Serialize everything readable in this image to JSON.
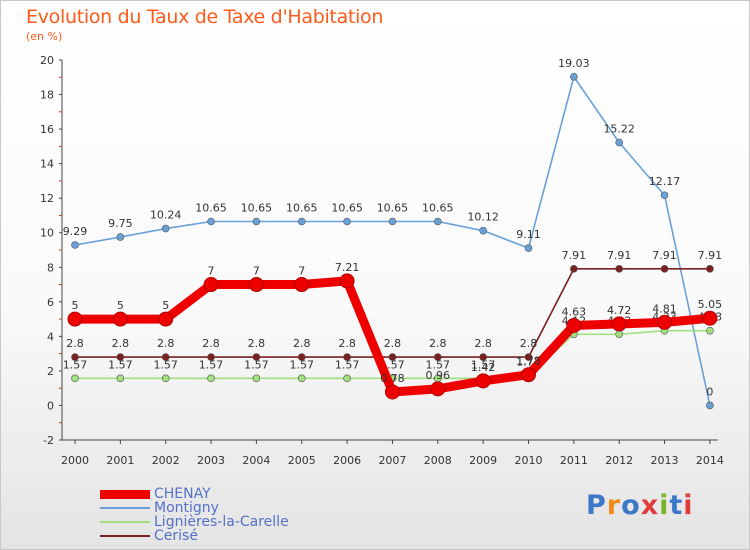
{
  "title": "Evolution du Taux de Taxe d'Habitation",
  "unit": "(en %)",
  "logo": {
    "text": "Proxiti",
    "colors": [
      "#3c78c8",
      "#f08c1e",
      "#3c78c8",
      "#e03c3c",
      "#7cb428",
      "#3c78c8",
      "#e03c3c"
    ]
  },
  "chart_data": {
    "type": "line",
    "x": [
      "2000",
      "2001",
      "2002",
      "2003",
      "2004",
      "2005",
      "2006",
      "2007",
      "2008",
      "2009",
      "2010",
      "2011",
      "2012",
      "2013",
      "2014"
    ],
    "ylim": [
      -2,
      20
    ],
    "yticks": [
      "-2",
      "0",
      "2",
      "4",
      "6",
      "8",
      "10",
      "12",
      "14",
      "16",
      "18",
      "20"
    ],
    "grid": false,
    "legend_position": "bottom-left",
    "series": [
      {
        "name": "Montigny",
        "color": "#6aa0d8",
        "values": [
          9.29,
          9.75,
          10.24,
          10.65,
          10.65,
          10.65,
          10.65,
          10.65,
          10.65,
          10.12,
          9.11,
          19.03,
          15.22,
          12.17,
          0
        ],
        "labels": [
          "9.29",
          "9.75",
          "10.24",
          "10.65",
          "10.65",
          "10.65",
          "10.65",
          "10.65",
          "10.65",
          "10.12",
          "9.11",
          "19.03",
          "15.22",
          "12.17",
          "0"
        ]
      },
      {
        "name": "Lignières-la-Carelle",
        "color": "#a0e080",
        "values": [
          1.57,
          1.57,
          1.57,
          1.57,
          1.57,
          1.57,
          1.57,
          1.57,
          1.57,
          1.57,
          1.73,
          4.12,
          4.12,
          4.33,
          4.33
        ],
        "labels": [
          "1.57",
          "1.57",
          "1.57",
          "1.57",
          "1.57",
          "1.57",
          "1.57",
          "1.57",
          "1.57",
          "1.57",
          "1.73",
          "4.12",
          "4.12",
          "4.33",
          "4.33"
        ]
      },
      {
        "name": "Cerisé",
        "color": "#7a2020",
        "values": [
          2.8,
          2.8,
          2.8,
          2.8,
          2.8,
          2.8,
          2.8,
          2.8,
          2.8,
          2.8,
          2.8,
          7.91,
          7.91,
          7.91,
          7.91
        ],
        "labels": [
          "2.8",
          "2.8",
          "2.8",
          "2.8",
          "2.8",
          "2.8",
          "2.8",
          "2.8",
          "2.8",
          "2.8",
          "2.8",
          "7.91",
          "7.91",
          "7.91",
          "7.91"
        ]
      },
      {
        "name": "CHENAY",
        "color": "#ee0000",
        "values": [
          5,
          5,
          5,
          7,
          7,
          7,
          7.21,
          0.78,
          0.96,
          1.42,
          1.78,
          4.63,
          4.72,
          4.81,
          5.05
        ],
        "labels": [
          "5",
          "5",
          "5",
          "7",
          "7",
          "7",
          "7.21",
          "0.78",
          "0.96",
          "1.42",
          "1.78",
          "4.63",
          "4.72",
          "4.81",
          "5.05"
        ]
      }
    ]
  },
  "legend": [
    {
      "label": "CHENAY",
      "color": "#ee0000"
    },
    {
      "label": "Montigny",
      "color": "#6aa0d8"
    },
    {
      "label": "Lignières-la-Carelle",
      "color": "#a0e080"
    },
    {
      "label": "Cerisé",
      "color": "#7a2020"
    }
  ]
}
